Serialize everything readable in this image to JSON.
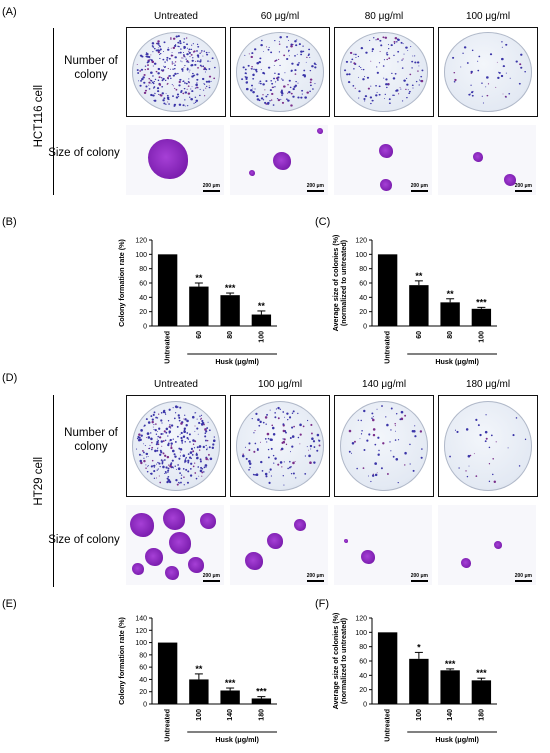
{
  "panels": {
    "A": "(A)",
    "B": "(B)",
    "C": "(C)",
    "D": "(D)",
    "E": "(E)",
    "F": "(F)"
  },
  "sectionA": {
    "cell_label": "HCT116 cell",
    "headers": [
      "Untreated",
      "60 μg/ml",
      "80 μg/ml",
      "100 μg/ml"
    ],
    "row_number": "Number of colony",
    "row_size": "Size of colony",
    "scale": "200 μm",
    "colony_density": [
      1.0,
      0.55,
      0.42,
      0.16
    ]
  },
  "sectionD": {
    "cell_label": "HT29 cell",
    "headers": [
      "Untreated",
      "100 μg/ml",
      "140 μg/ml",
      "180 μg/ml"
    ],
    "row_number": "Number of colony",
    "row_size": "Size of colony",
    "scale": "200 μm",
    "colony_density": [
      1.0,
      0.4,
      0.22,
      0.1
    ]
  },
  "chart_data": [
    {
      "id": "B",
      "type": "bar",
      "categories": [
        "Untreated",
        "60",
        "80",
        "100"
      ],
      "values": [
        100,
        55,
        43,
        16
      ],
      "errors": [
        0,
        5,
        3,
        5
      ],
      "significance": [
        "",
        "**",
        "***",
        "**"
      ],
      "ylabel": "Colony formation rate (%)",
      "xgroup_label": "Husk (μg/ml)",
      "ylim": [
        0,
        120
      ],
      "yticks": [
        0,
        20,
        40,
        60,
        80,
        100,
        120
      ]
    },
    {
      "id": "C",
      "type": "bar",
      "categories": [
        "Untreated",
        "60",
        "80",
        "100"
      ],
      "values": [
        100,
        57,
        33,
        24
      ],
      "errors": [
        0,
        6,
        5,
        2
      ],
      "significance": [
        "",
        "**",
        "**",
        "***"
      ],
      "ylabel": "Average size of colonies (%) (normalized to untreated)",
      "xgroup_label": "Husk (μg/ml)",
      "ylim": [
        0,
        120
      ],
      "yticks": [
        0,
        20,
        40,
        60,
        80,
        100,
        120
      ]
    },
    {
      "id": "E",
      "type": "bar",
      "categories": [
        "Untreated",
        "100",
        "140",
        "180"
      ],
      "values": [
        100,
        40,
        22,
        9
      ],
      "errors": [
        0,
        9,
        4,
        3
      ],
      "significance": [
        "",
        "**",
        "***",
        "***"
      ],
      "ylabel": "Colony formation rate (%)",
      "xgroup_label": "Husk (μg/ml)",
      "ylim": [
        0,
        140
      ],
      "yticks": [
        0,
        20,
        40,
        60,
        80,
        100,
        120,
        140
      ]
    },
    {
      "id": "F",
      "type": "bar",
      "categories": [
        "Untreated",
        "100",
        "140",
        "180"
      ],
      "values": [
        100,
        63,
        47,
        33
      ],
      "errors": [
        0,
        9,
        2,
        3
      ],
      "significance": [
        "",
        "*",
        "***",
        "***"
      ],
      "ylabel": "Average size of colonies (%) (normalized to untreated)",
      "xgroup_label": "Husk (μg/ml)",
      "ylim": [
        0,
        120
      ],
      "yticks": [
        0,
        20,
        40,
        60,
        80,
        100,
        120
      ]
    }
  ]
}
